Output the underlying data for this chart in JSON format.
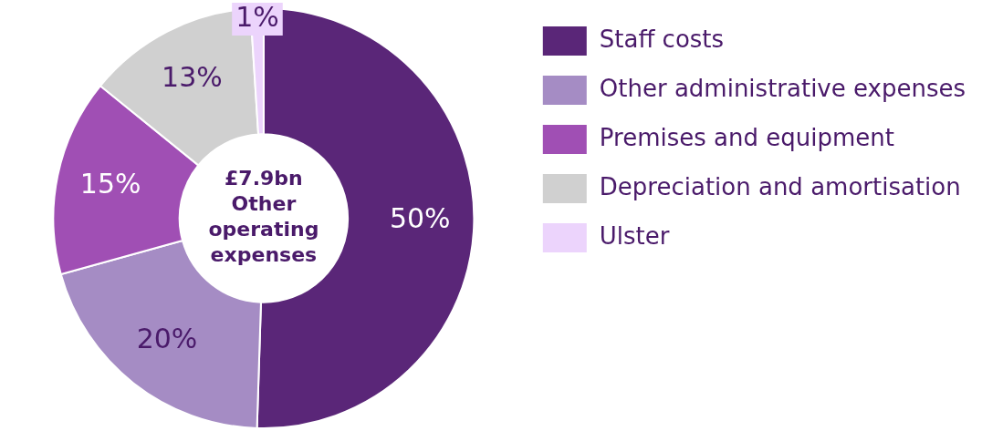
{
  "chart_data": {
    "type": "donut",
    "categories": [
      "Staff costs",
      "Other administrative expenses",
      "Premises and equipment",
      "Depreciation and amortisation",
      "Ulster"
    ],
    "values": [
      50,
      20,
      15,
      13,
      1
    ],
    "colors": [
      "#5a2678",
      "#a58cc4",
      "#a04fb4",
      "#d0d0d0",
      "#ecd4fc"
    ],
    "value_labels": [
      "50%",
      "20%",
      "15%",
      "13%",
      "1%"
    ],
    "annotations": [
      "£7.9bn Other operating expenses"
    ],
    "legend": "right"
  }
}
